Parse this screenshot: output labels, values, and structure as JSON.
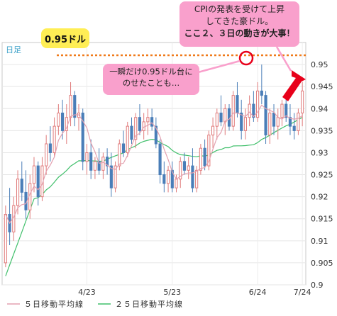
{
  "chart_data": {
    "type": "candlestick",
    "timeframe": "日足",
    "ylim": [
      0.9,
      0.955
    ],
    "y_ticks": [
      "0.9",
      "0.905",
      "0.91",
      "0.915",
      "0.92",
      "0.925",
      "0.93",
      "0.935",
      "0.94",
      "0.945",
      "0.95"
    ],
    "x_ticks": [
      "4/23",
      "5/23",
      "6/24",
      "7/24"
    ],
    "series": [
      {
        "name": "５日移動平均線",
        "color": "#e3a1b0"
      },
      {
        "name": "２５日移動平均線",
        "color": "#3fbf6a"
      }
    ],
    "candles": [
      [
        0.905,
        0.918,
        0.904,
        0.916
      ],
      [
        0.916,
        0.922,
        0.909,
        0.912
      ],
      [
        0.912,
        0.92,
        0.91,
        0.918
      ],
      [
        0.918,
        0.926,
        0.916,
        0.924
      ],
      [
        0.924,
        0.928,
        0.919,
        0.921
      ],
      [
        0.921,
        0.926,
        0.915,
        0.917
      ],
      [
        0.917,
        0.925,
        0.915,
        0.923
      ],
      [
        0.923,
        0.929,
        0.921,
        0.927
      ],
      [
        0.927,
        0.928,
        0.918,
        0.92
      ],
      [
        0.92,
        0.929,
        0.919,
        0.927
      ],
      [
        0.927,
        0.934,
        0.925,
        0.932
      ],
      [
        0.932,
        0.936,
        0.928,
        0.93
      ],
      [
        0.93,
        0.938,
        0.929,
        0.936
      ],
      [
        0.936,
        0.941,
        0.934,
        0.939
      ],
      [
        0.939,
        0.942,
        0.933,
        0.935
      ],
      [
        0.935,
        0.941,
        0.932,
        0.938
      ],
      [
        0.938,
        0.946,
        0.936,
        0.943
      ],
      [
        0.943,
        0.944,
        0.936,
        0.938
      ],
      [
        0.938,
        0.941,
        0.935,
        0.939
      ],
      [
        0.939,
        0.94,
        0.926,
        0.928
      ],
      [
        0.928,
        0.932,
        0.925,
        0.93
      ],
      [
        0.93,
        0.933,
        0.924,
        0.926
      ],
      [
        0.926,
        0.929,
        0.924,
        0.928
      ],
      [
        0.928,
        0.931,
        0.925,
        0.926
      ],
      [
        0.926,
        0.93,
        0.924,
        0.929
      ],
      [
        0.929,
        0.931,
        0.925,
        0.927
      ],
      [
        0.927,
        0.93,
        0.92,
        0.922
      ],
      [
        0.922,
        0.928,
        0.921,
        0.927
      ],
      [
        0.927,
        0.933,
        0.926,
        0.932
      ],
      [
        0.932,
        0.935,
        0.929,
        0.93
      ],
      [
        0.93,
        0.937,
        0.929,
        0.936
      ],
      [
        0.936,
        0.938,
        0.932,
        0.933
      ],
      [
        0.933,
        0.939,
        0.931,
        0.938
      ],
      [
        0.938,
        0.941,
        0.934,
        0.935
      ],
      [
        0.935,
        0.939,
        0.933,
        0.937
      ],
      [
        0.937,
        0.94,
        0.934,
        0.938
      ],
      [
        0.938,
        0.94,
        0.935,
        0.936
      ],
      [
        0.936,
        0.938,
        0.931,
        0.932
      ],
      [
        0.932,
        0.933,
        0.923,
        0.925
      ],
      [
        0.925,
        0.928,
        0.921,
        0.923
      ],
      [
        0.923,
        0.927,
        0.921,
        0.926
      ],
      [
        0.926,
        0.928,
        0.921,
        0.922
      ],
      [
        0.922,
        0.925,
        0.921,
        0.924
      ],
      [
        0.924,
        0.929,
        0.922,
        0.928
      ],
      [
        0.928,
        0.93,
        0.925,
        0.926
      ],
      [
        0.926,
        0.929,
        0.924,
        0.927
      ],
      [
        0.927,
        0.931,
        0.921,
        0.922
      ],
      [
        0.922,
        0.927,
        0.921,
        0.926
      ],
      [
        0.926,
        0.932,
        0.925,
        0.931
      ],
      [
        0.931,
        0.933,
        0.926,
        0.927
      ],
      [
        0.927,
        0.935,
        0.926,
        0.934
      ],
      [
        0.934,
        0.938,
        0.931,
        0.936
      ],
      [
        0.936,
        0.94,
        0.933,
        0.939
      ],
      [
        0.939,
        0.943,
        0.936,
        0.937
      ],
      [
        0.937,
        0.941,
        0.934,
        0.94
      ],
      [
        0.94,
        0.941,
        0.935,
        0.936
      ],
      [
        0.936,
        0.944,
        0.935,
        0.943
      ],
      [
        0.943,
        0.946,
        0.938,
        0.939
      ],
      [
        0.939,
        0.942,
        0.933,
        0.935
      ],
      [
        0.935,
        0.94,
        0.933,
        0.938
      ],
      [
        0.938,
        0.943,
        0.936,
        0.941
      ],
      [
        0.941,
        0.944,
        0.937,
        0.938
      ],
      [
        0.938,
        0.946,
        0.937,
        0.944
      ],
      [
        0.944,
        0.95,
        0.941,
        0.943
      ],
      [
        0.943,
        0.944,
        0.932,
        0.934
      ],
      [
        0.934,
        0.94,
        0.932,
        0.939
      ],
      [
        0.939,
        0.941,
        0.934,
        0.936
      ],
      [
        0.936,
        0.94,
        0.933,
        0.938
      ],
      [
        0.938,
        0.942,
        0.936,
        0.941
      ],
      [
        0.941,
        0.943,
        0.937,
        0.938
      ],
      [
        0.938,
        0.941,
        0.934,
        0.936
      ],
      [
        0.936,
        0.939,
        0.933,
        0.935
      ],
      [
        0.935,
        0.94,
        0.934,
        0.939
      ],
      [
        0.939,
        0.946,
        0.936,
        0.944
      ]
    ]
  },
  "annotations": {
    "level_label": "0.95ドル",
    "touch_note": "一瞬だけ0.95ドル台にのせたことも…",
    "callout_line1": "CPIの発表を受けて上昇",
    "callout_line2": "してきた豪ドル。",
    "callout_line3": "ここ２、３日の動きが大事！"
  },
  "colors": {
    "bull": "#e07a7a",
    "bear": "#4a7eb8",
    "level_line": "#f07a1a",
    "note_bg": "#f9a0cc",
    "pill_bg": "#ffee55",
    "arrow": "#e8001a",
    "label_blue": "#3aa0c8"
  }
}
